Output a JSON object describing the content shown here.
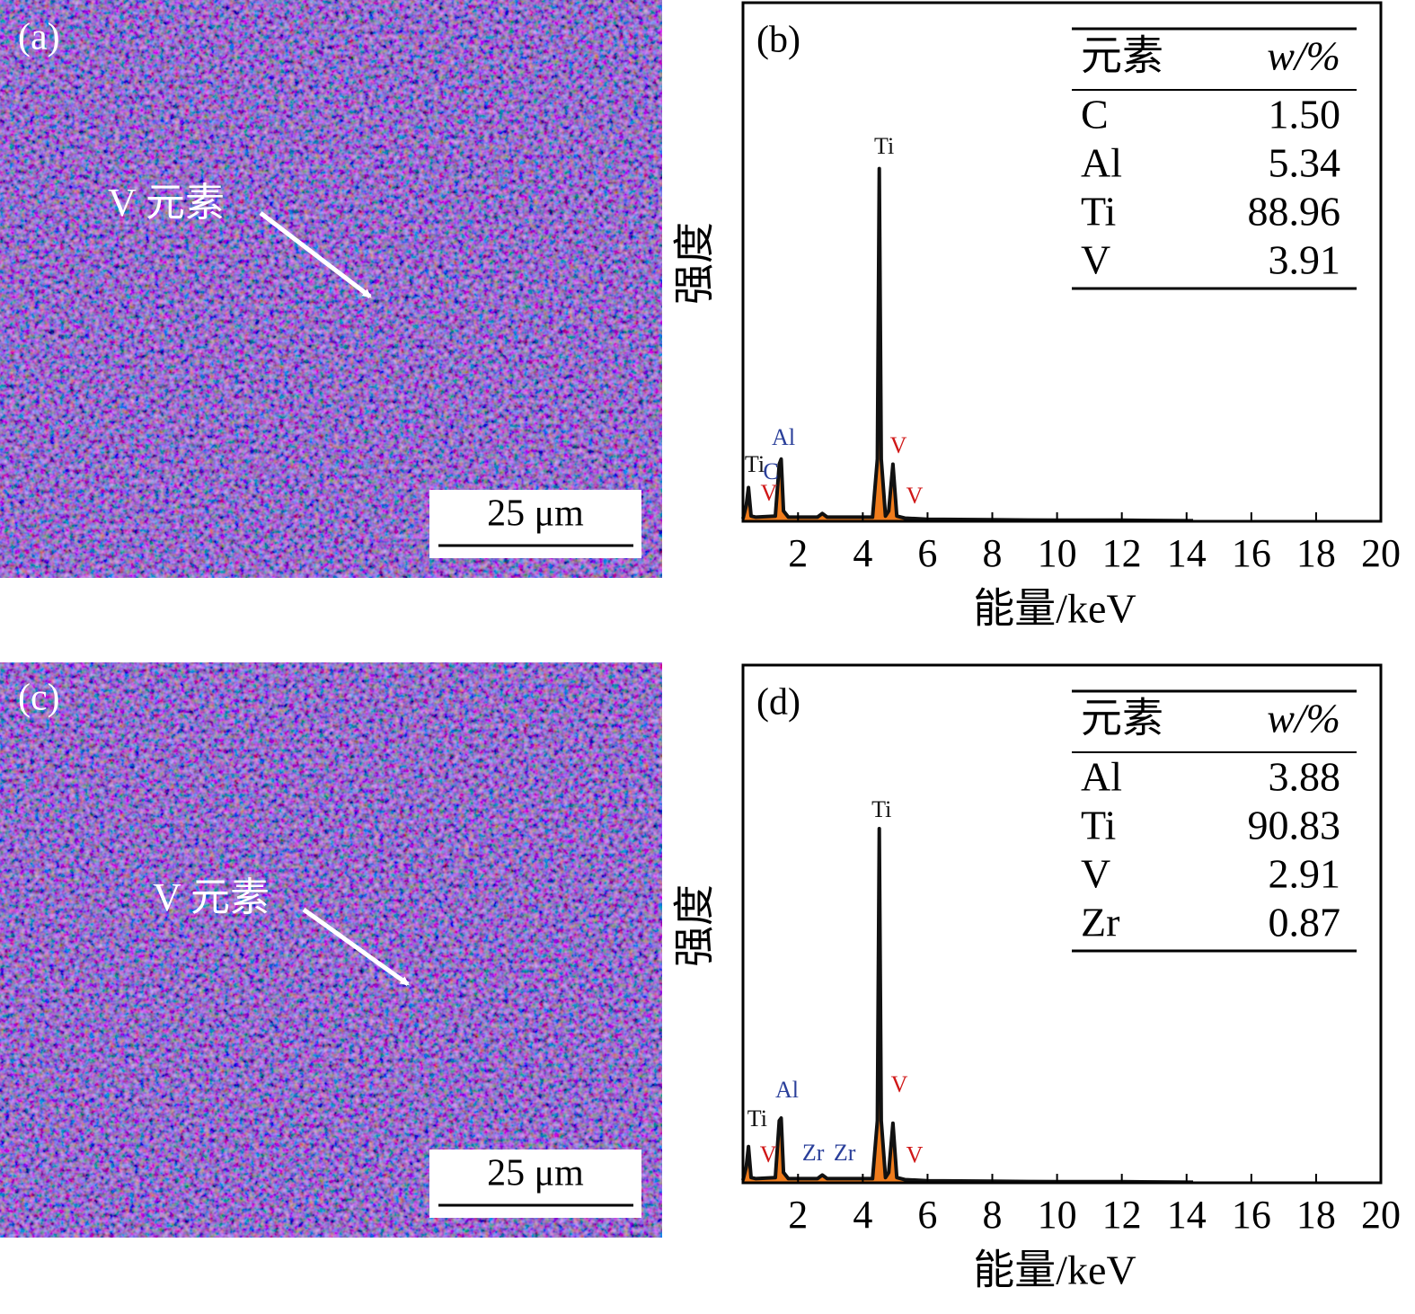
{
  "maps": [
    {
      "label": "(a)",
      "annotation": "V 元素",
      "scale_bar": "25 μm"
    },
    {
      "label": "(c)",
      "annotation": "V 元素",
      "scale_bar": "25 μm"
    }
  ],
  "chart_data": [
    {
      "type": "line",
      "label": "(b)",
      "x_label": "能量/keV",
      "y_label": "强度",
      "xlim": [
        0.3,
        20
      ],
      "ylim": [
        0,
        100
      ],
      "xticks": [
        2,
        4,
        6,
        8,
        10,
        12,
        14,
        16,
        18,
        20
      ],
      "line_color": "#111111",
      "fill_color": "#f07c1c",
      "x": [
        0.3,
        0.4,
        0.47,
        0.55,
        0.7,
        1.3,
        1.42,
        1.48,
        1.55,
        1.7,
        2.6,
        2.75,
        2.9,
        4.3,
        4.45,
        4.51,
        4.57,
        4.7,
        4.8,
        4.93,
        5.05,
        5.3,
        6,
        8,
        10,
        12,
        14.2
      ],
      "values": [
        0.5,
        3,
        6.5,
        1,
        0.8,
        1,
        11,
        12,
        2,
        0.8,
        0.8,
        1.5,
        0.8,
        0.8,
        12,
        68,
        12,
        1,
        2,
        11,
        1,
        0.6,
        0.4,
        0.3,
        0.2,
        0.2,
        0.1
      ],
      "annotations": [
        {
          "text": "Ti",
          "x": 4.66,
          "y": 71.9,
          "color": "#111111"
        },
        {
          "text": "Al",
          "x": 1.55,
          "y": 15.8,
          "color": "#2a3f9a"
        },
        {
          "text": "Ti",
          "x": 0.66,
          "y": 10.6,
          "color": "#111111"
        },
        {
          "text": "C",
          "x": 1.16,
          "y": 9.2,
          "color": "#2a3f9a"
        },
        {
          "text": "V",
          "x": 1.1,
          "y": 5.0,
          "color": "#d01818"
        },
        {
          "text": "V",
          "x": 5.1,
          "y": 14.2,
          "color": "#d01818"
        },
        {
          "text": "V",
          "x": 5.6,
          "y": 4.5,
          "color": "#d01818"
        }
      ],
      "table": {
        "header": [
          "元素",
          "w/%"
        ],
        "rows": [
          [
            "C",
            "1.50"
          ],
          [
            "Al",
            "5.34"
          ],
          [
            "Ti",
            "88.96"
          ],
          [
            "V",
            "3.91"
          ]
        ]
      }
    },
    {
      "type": "line",
      "label": "(d)",
      "x_label": "能量/keV",
      "y_label": "强度",
      "xlim": [
        0.3,
        20
      ],
      "ylim": [
        0,
        100
      ],
      "xticks": [
        2,
        4,
        6,
        8,
        10,
        12,
        14,
        16,
        18,
        20
      ],
      "line_color": "#111111",
      "fill_color": "#f07c1c",
      "x": [
        0.3,
        0.4,
        0.47,
        0.55,
        0.7,
        1.3,
        1.42,
        1.48,
        1.55,
        1.7,
        2.6,
        2.75,
        2.9,
        4.3,
        4.45,
        4.51,
        4.57,
        4.7,
        4.8,
        4.93,
        5.05,
        5.3,
        6,
        8,
        10,
        12,
        14.2
      ],
      "values": [
        0.5,
        3,
        7,
        1,
        0.8,
        1,
        12,
        12.5,
        2,
        0.8,
        0.8,
        1.5,
        0.8,
        0.8,
        12,
        68.4,
        12,
        1,
        2,
        11.5,
        1,
        0.6,
        0.4,
        0.3,
        0.2,
        0.2,
        0.1
      ],
      "annotations": [
        {
          "text": "Ti",
          "x": 4.58,
          "y": 71.7,
          "color": "#111111"
        },
        {
          "text": "Al",
          "x": 1.66,
          "y": 17.5,
          "color": "#2a3f9a"
        },
        {
          "text": "Ti",
          "x": 0.74,
          "y": 12.0,
          "color": "#111111"
        },
        {
          "text": "V",
          "x": 1.08,
          "y": 5.0,
          "color": "#d01818"
        },
        {
          "text": "Zr",
          "x": 2.47,
          "y": 5.4,
          "color": "#2a3f9a"
        },
        {
          "text": "Zr",
          "x": 3.44,
          "y": 5.4,
          "color": "#2a3f9a"
        },
        {
          "text": "V",
          "x": 5.13,
          "y": 18.6,
          "color": "#d01818"
        },
        {
          "text": "V",
          "x": 5.6,
          "y": 4.9,
          "color": "#d01818"
        }
      ],
      "table": {
        "header": [
          "元素",
          "w/%"
        ],
        "rows": [
          [
            "Al",
            "3.88"
          ],
          [
            "Ti",
            "90.83"
          ],
          [
            "V",
            "2.91"
          ],
          [
            "Zr",
            "0.87"
          ]
        ]
      }
    }
  ]
}
